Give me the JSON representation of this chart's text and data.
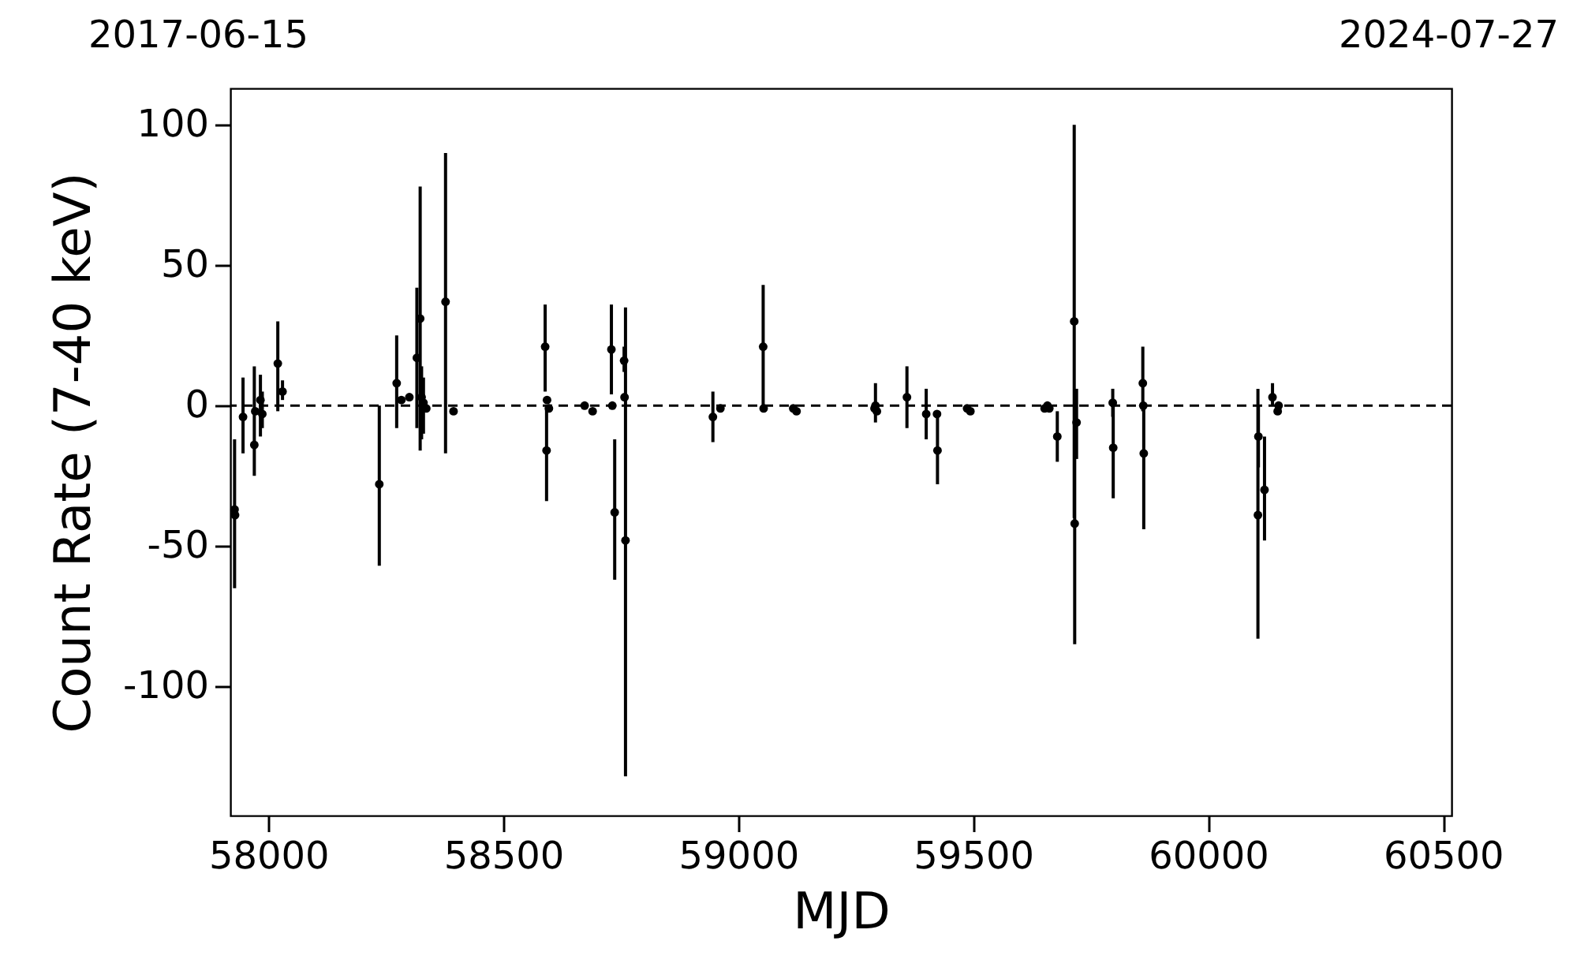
{
  "chart_data": {
    "type": "scatter",
    "xlabel": "MJD",
    "ylabel": "Count Rate (7-40 keV)",
    "xlim": [
      57919,
      60518
    ],
    "xticks": [
      58000,
      58500,
      59000,
      59500,
      60000,
      60500
    ],
    "ylim": [
      -146,
      113
    ],
    "yticks": [
      -100,
      -50,
      0,
      50,
      100
    ],
    "annotations": [
      "2017-06-15",
      "2024-07-27"
    ],
    "grid": false,
    "marker": "circle",
    "ref_lines": [
      {
        "axis": "y",
        "value": 0,
        "color": "#000000",
        "line_style": "dashed"
      }
    ],
    "series": [
      {
        "color": "#000000",
        "x": [
          57928,
          57929,
          57946,
          57970,
          57972,
          57983,
          57987,
          58020,
          58030,
          58236,
          58273,
          58283,
          58300,
          58316,
          58323,
          58326,
          58330,
          58336,
          58377,
          58394,
          58589,
          58592,
          58593,
          58597,
          58673,
          58690,
          58730,
          58732,
          58737,
          58757,
          58758,
          58760,
          58946,
          58962,
          59053,
          59054,
          59117,
          59124,
          59290,
          59292,
          59295,
          59359,
          59400,
          59423,
          59424,
          59487,
          59494,
          59652,
          59658,
          59662,
          59679,
          59715,
          59716,
          59720,
          59797,
          59798,
          59861,
          59862,
          59863,
          60106,
          60107,
          60120,
          60137,
          60148,
          60150
        ],
        "values": [
          -37,
          -39,
          -4,
          -14,
          -2,
          2,
          -3,
          15,
          5,
          -28,
          8,
          2,
          3,
          17,
          31,
          3,
          1,
          -1,
          37,
          -2,
          21,
          -16,
          2,
          -1,
          0,
          -2,
          20,
          0,
          -38,
          16,
          3,
          -48,
          -4,
          -1,
          21,
          -1,
          -1,
          -2,
          -1,
          0,
          -2,
          3,
          -3,
          -3,
          -16,
          -1,
          -2,
          -1,
          0,
          -1,
          -11,
          30,
          -42,
          -6,
          1,
          -15,
          8,
          0,
          -17,
          -39,
          -11,
          -30,
          3,
          -2,
          0
        ],
        "errors": [
          [
            -65,
            -12
          ],
          null,
          [
            -17,
            10
          ],
          [
            -25,
            14
          ],
          null,
          [
            -11,
            11
          ],
          [
            -8,
            5
          ],
          [
            -2,
            30
          ],
          [
            2,
            9
          ],
          [
            -57,
            0
          ],
          [
            -8,
            25
          ],
          null,
          null,
          [
            -8,
            42
          ],
          [
            -16,
            78
          ],
          [
            -12,
            14
          ],
          [
            -10,
            10
          ],
          null,
          [
            -17,
            90
          ],
          null,
          [
            5,
            36
          ],
          [
            -34,
            0
          ],
          null,
          null,
          null,
          null,
          [
            4,
            36
          ],
          null,
          [
            -62,
            -12
          ],
          [
            12,
            21
          ],
          null,
          [
            -132,
            35
          ],
          [
            -13,
            5
          ],
          null,
          [
            0,
            43
          ],
          null,
          null,
          null,
          null,
          [
            -6,
            8
          ],
          null,
          [
            -8,
            14
          ],
          [
            -12,
            6
          ],
          null,
          [
            -28,
            -2
          ],
          null,
          null,
          null,
          null,
          null,
          [
            -20,
            -2
          ],
          [
            -40,
            100
          ],
          [
            -85,
            1
          ],
          [
            -19,
            6
          ],
          [
            -4,
            6
          ],
          [
            -33,
            0
          ],
          [
            -2,
            21
          ],
          null,
          [
            -44,
            0
          ],
          [
            -83,
            6
          ],
          [
            -22,
            0
          ],
          [
            -48,
            -11
          ],
          [
            0,
            8
          ],
          null,
          null
        ]
      }
    ]
  }
}
